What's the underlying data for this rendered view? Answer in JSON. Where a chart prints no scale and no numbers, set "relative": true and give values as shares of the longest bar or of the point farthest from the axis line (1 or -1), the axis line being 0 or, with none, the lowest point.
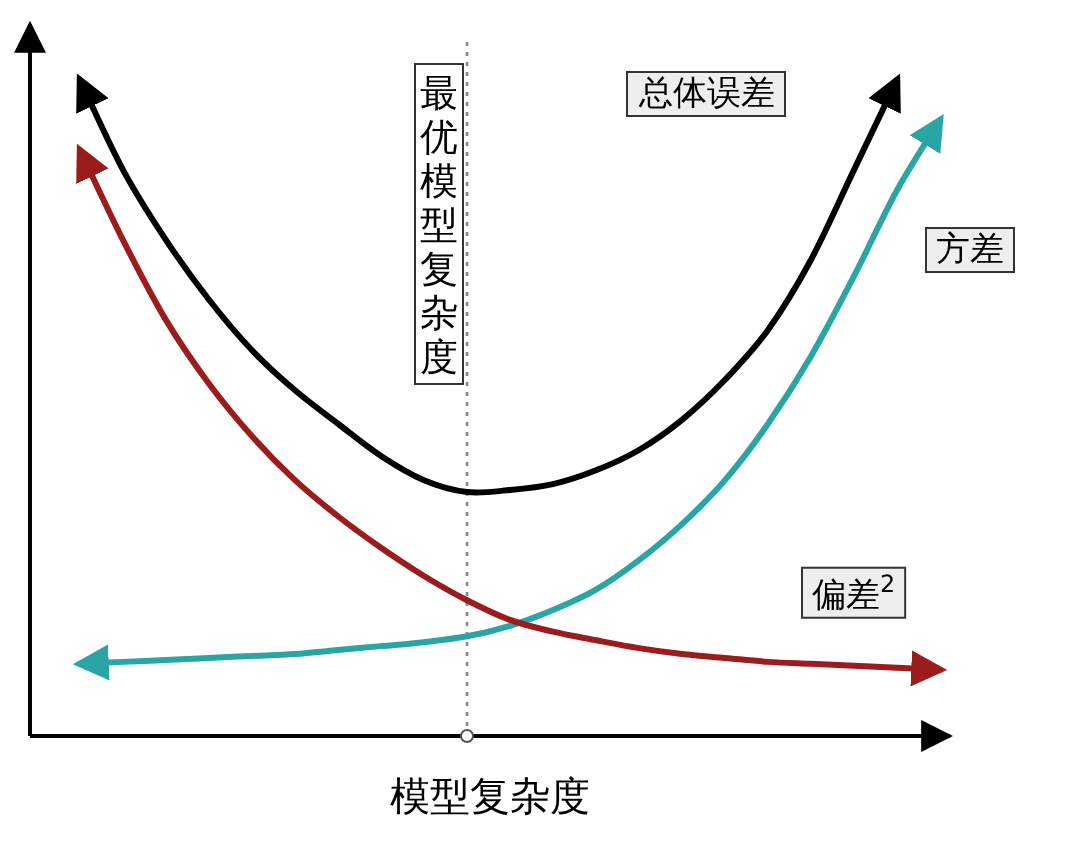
{
  "chart_data": {
    "type": "line",
    "relative": true,
    "xlabel": "模型复杂度",
    "line_style": "solid",
    "annotations": [
      "最优模型复杂度"
    ],
    "categories": [
      null,
      null,
      null,
      null,
      null,
      null,
      null,
      null,
      null,
      null,
      null,
      null,
      null,
      null,
      null,
      null,
      null,
      null,
      null,
      null,
      null
    ],
    "series": [
      {
        "name": "总体误差",
        "color": "#000000",
        "values": [
          1.0,
          0.863,
          0.756,
          0.665,
          0.588,
          0.527,
          0.476,
          0.427,
          0.39,
          0.372,
          0.375,
          0.384,
          0.405,
          0.436,
          0.482,
          0.543,
          0.619,
          0.726,
          0.863,
          1.0,
          null
        ]
      },
      {
        "name": "方差",
        "color": "#2aa5a5",
        "values": [
          0.11,
          0.113,
          0.116,
          0.119,
          0.122,
          0.125,
          0.131,
          0.137,
          0.143,
          0.152,
          0.168,
          0.192,
          0.223,
          0.268,
          0.323,
          0.39,
          0.476,
          0.579,
          0.701,
          0.832,
          0.939
        ]
      },
      {
        "name": "偏差$^{2}$",
        "color": "#9b1c1c",
        "values": [
          0.893,
          0.756,
          0.634,
          0.537,
          0.457,
          0.39,
          0.335,
          0.287,
          0.244,
          0.207,
          0.177,
          0.159,
          0.146,
          0.134,
          0.125,
          0.119,
          0.113,
          0.11,
          0.107,
          0.104,
          0.101
        ]
      }
    ]
  }
}
